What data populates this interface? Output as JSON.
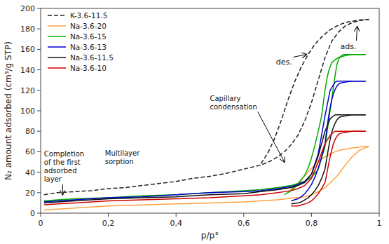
{
  "chart_data": {
    "type": "line",
    "xlabel": "p/p°",
    "ylabel": "N₂ amount adsorbed (cm³/g STP)",
    "xlim": [
      0,
      1.0
    ],
    "ylim": [
      0,
      200
    ],
    "xticks": [
      0,
      {
        "value": 0.2,
        "label": "0,2"
      },
      {
        "value": 0.4,
        "label": "0,4"
      },
      {
        "value": 0.6,
        "label": "0,6"
      },
      {
        "value": 0.8,
        "label": "0,8"
      },
      1
    ],
    "yticks": [
      0,
      20,
      40,
      60,
      80,
      100,
      120,
      140,
      160,
      180,
      200
    ],
    "grid": false,
    "legend": "upper left",
    "series": [
      {
        "name": "K-3.6-11.5",
        "color": "#222222",
        "line_style": "dashed",
        "x": [
          0.01,
          0.05,
          0.1,
          0.15,
          0.2,
          0.25,
          0.3,
          0.35,
          0.4,
          0.45,
          0.5,
          0.55,
          0.6,
          0.65,
          0.68,
          0.7,
          0.72,
          0.74,
          0.76,
          0.78,
          0.8,
          0.82,
          0.84,
          0.86,
          0.88,
          0.9,
          0.92,
          0.94,
          0.96,
          0.97
        ],
        "values": [
          18,
          20,
          21,
          22,
          24,
          25,
          27,
          29,
          31,
          34,
          36,
          39,
          43,
          47,
          51,
          55,
          60,
          67,
          76,
          90,
          108,
          130,
          152,
          168,
          177,
          183,
          186,
          188,
          189,
          189
        ],
        "des_x": [
          0.97,
          0.95,
          0.93,
          0.91,
          0.89,
          0.87,
          0.85,
          0.83,
          0.81,
          0.79,
          0.77,
          0.75,
          0.73,
          0.71,
          0.69,
          0.67,
          0.65
        ],
        "des_values": [
          189,
          189,
          188,
          187,
          185,
          182,
          178,
          172,
          165,
          155,
          143,
          128,
          110,
          90,
          72,
          58,
          48
        ]
      },
      {
        "name": "Na-3.6-20",
        "color": "#FFA040",
        "line_style": "solid",
        "x": [
          0.01,
          0.05,
          0.1,
          0.15,
          0.2,
          0.3,
          0.4,
          0.5,
          0.6,
          0.65,
          0.7,
          0.75,
          0.78,
          0.8,
          0.82,
          0.84,
          0.86,
          0.88,
          0.9,
          0.92,
          0.94,
          0.96,
          0.97
        ],
        "values": [
          3,
          4,
          5,
          6,
          7,
          8,
          9,
          10,
          11,
          12,
          13,
          15,
          16,
          18,
          21,
          25,
          31,
          38,
          47,
          55,
          61,
          64,
          65
        ],
        "des_x": [
          0.97,
          0.95,
          0.93,
          0.91,
          0.89,
          0.87,
          0.85,
          0.83,
          0.81,
          0.79,
          0.77,
          0.75,
          0.73
        ],
        "des_values": [
          65,
          65,
          64,
          63,
          62,
          60,
          57,
          53,
          47,
          40,
          33,
          26,
          20
        ]
      },
      {
        "name": "Na-3.6-15",
        "color": "#00AA00",
        "line_style": "solid",
        "x": [
          0.01,
          0.05,
          0.1,
          0.2,
          0.3,
          0.4,
          0.5,
          0.6,
          0.65,
          0.7,
          0.74,
          0.76,
          0.78,
          0.8,
          0.82,
          0.84,
          0.855,
          0.87,
          0.875,
          0.88,
          0.885,
          0.89,
          0.895,
          0.9,
          0.91,
          0.92,
          0.94,
          0.96
        ],
        "values": [
          12,
          13,
          14,
          15,
          17,
          18,
          20,
          22,
          23,
          25,
          27,
          29,
          31,
          35,
          43,
          65,
          100,
          135,
          145,
          150,
          153,
          154,
          155,
          155,
          155,
          155,
          155,
          155
        ],
        "des_x": [
          0.96,
          0.94,
          0.92,
          0.9,
          0.88,
          0.87,
          0.86,
          0.855,
          0.85,
          0.845,
          0.84,
          0.835,
          0.83,
          0.82,
          0.81,
          0.8,
          0.79,
          0.78,
          0.76,
          0.74,
          0.72
        ],
        "des_values": [
          155,
          155,
          155,
          154,
          152,
          150,
          147,
          143,
          138,
          130,
          120,
          108,
          95,
          80,
          66,
          54,
          44,
          37,
          28,
          22,
          18
        ]
      },
      {
        "name": "Na-3.6-13",
        "color": "#0000CC",
        "line_style": "solid",
        "x": [
          0.01,
          0.05,
          0.1,
          0.2,
          0.3,
          0.4,
          0.5,
          0.6,
          0.65,
          0.7,
          0.74,
          0.76,
          0.78,
          0.8,
          0.82,
          0.84,
          0.855,
          0.87,
          0.875,
          0.88,
          0.885,
          0.89,
          0.9,
          0.92,
          0.94,
          0.96
        ],
        "values": [
          11,
          12,
          13,
          15,
          16,
          18,
          20,
          21,
          22,
          24,
          26,
          28,
          31,
          38,
          58,
          95,
          120,
          128,
          129,
          129,
          129,
          129,
          129,
          129,
          129,
          129
        ],
        "des_x": [
          0.96,
          0.94,
          0.92,
          0.9,
          0.885,
          0.88,
          0.875,
          0.87,
          0.865,
          0.86,
          0.855,
          0.85,
          0.845,
          0.84,
          0.83,
          0.82,
          0.81,
          0.8,
          0.79,
          0.78,
          0.77,
          0.76,
          0.74
        ],
        "des_values": [
          129,
          129,
          129,
          128,
          127,
          126,
          124,
          121,
          117,
          111,
          103,
          93,
          81,
          68,
          55,
          44,
          35,
          28,
          23,
          19,
          16,
          14,
          12
        ]
      },
      {
        "name": "Na-3.6-11.5",
        "color": "#111111",
        "line_style": "solid",
        "x": [
          0.01,
          0.05,
          0.1,
          0.2,
          0.3,
          0.4,
          0.5,
          0.6,
          0.65,
          0.7,
          0.74,
          0.76,
          0.78,
          0.8,
          0.82,
          0.84,
          0.855,
          0.865,
          0.87,
          0.875,
          0.88,
          0.89,
          0.9,
          0.92,
          0.94,
          0.96
        ],
        "values": [
          10,
          11,
          12,
          14,
          15,
          16,
          18,
          19,
          21,
          23,
          25,
          27,
          30,
          38,
          56,
          80,
          92,
          95,
          96,
          96,
          96,
          96,
          96,
          96,
          96,
          96
        ],
        "des_x": [
          0.96,
          0.94,
          0.92,
          0.9,
          0.885,
          0.88,
          0.875,
          0.87,
          0.865,
          0.86,
          0.855,
          0.85,
          0.845,
          0.84,
          0.83,
          0.82,
          0.81,
          0.8,
          0.79,
          0.78,
          0.77,
          0.76,
          0.74
        ],
        "des_values": [
          96,
          96,
          96,
          95,
          94,
          93,
          91,
          88,
          84,
          79,
          72,
          63,
          53,
          43,
          34,
          27,
          22,
          18,
          15,
          13,
          11,
          10,
          9
        ]
      },
      {
        "name": "Na-3.6-10",
        "color": "#CC0000",
        "line_style": "solid",
        "x": [
          0.01,
          0.05,
          0.1,
          0.2,
          0.3,
          0.4,
          0.5,
          0.6,
          0.65,
          0.7,
          0.74,
          0.76,
          0.78,
          0.8,
          0.82,
          0.84,
          0.855,
          0.865,
          0.87,
          0.875,
          0.88,
          0.89,
          0.9,
          0.92,
          0.94,
          0.96
        ],
        "values": [
          8,
          9,
          10,
          12,
          13,
          14,
          15,
          17,
          18,
          20,
          22,
          24,
          27,
          34,
          50,
          68,
          76,
          79,
          80,
          80,
          80,
          80,
          80,
          80,
          80,
          80
        ],
        "des_x": [
          0.96,
          0.94,
          0.92,
          0.9,
          0.885,
          0.88,
          0.875,
          0.87,
          0.865,
          0.86,
          0.855,
          0.85,
          0.845,
          0.84,
          0.83,
          0.82,
          0.81,
          0.8,
          0.79,
          0.78,
          0.77,
          0.76,
          0.74
        ],
        "des_values": [
          80,
          80,
          80,
          79,
          78,
          77,
          75,
          72,
          68,
          62,
          55,
          47,
          38,
          30,
          24,
          19,
          15,
          12,
          10,
          9,
          8,
          7,
          7
        ]
      }
    ],
    "annotations": [
      {
        "text": "Completion\nof the first\nadsorbed\nlayer",
        "xy": [
          0.065,
          18
        ],
        "xytext": [
          0.01,
          62
        ]
      },
      {
        "text": "Multilayer\nsorption",
        "xytext": [
          0.19,
          46
        ]
      },
      {
        "text": "Capillary\ncondensation",
        "xy": [
          0.72,
          50
        ],
        "xytext": [
          0.5,
          100
        ]
      },
      {
        "text": "des.",
        "xy": [
          0.785,
          155
        ],
        "xytext": [
          0.695,
          148
        ]
      },
      {
        "text": "ads.",
        "xy": [
          0.935,
          182
        ],
        "xytext": [
          0.885,
          163
        ]
      }
    ]
  }
}
